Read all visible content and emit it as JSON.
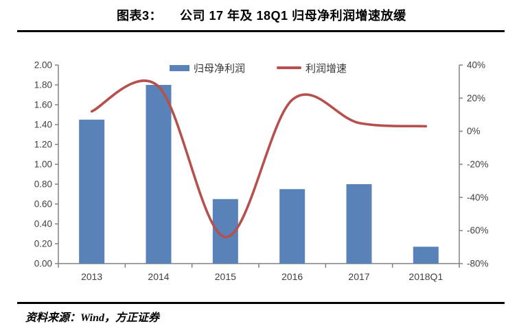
{
  "title": {
    "label": "图表3：",
    "text": "公司 17 年及 18Q1 归母净利润增速放缓"
  },
  "source_note": "资料来源：Wind，方正证券",
  "colors": {
    "bar": "#5882B8",
    "line": "#B5504D",
    "axis": "#808080",
    "tick_text": "#404040"
  },
  "chart_data": {
    "type": "bar",
    "subtype": "bar+line combo",
    "categories": [
      "2013",
      "2014",
      "2015",
      "2016",
      "2017",
      "2018Q1"
    ],
    "series": [
      {
        "name": "归母净利润",
        "type": "bar",
        "axis": "left",
        "color": "#5882B8",
        "values": [
          1.45,
          1.8,
          0.65,
          0.75,
          0.8,
          0.17
        ]
      },
      {
        "name": "利润增速",
        "type": "line",
        "axis": "right",
        "color": "#B5504D",
        "unit": "%",
        "values": [
          12,
          27,
          -64,
          19,
          5,
          3
        ]
      }
    ],
    "left_axis": {
      "min": 0,
      "max": 2,
      "step": 0.2,
      "ticks": [
        "2.00",
        "1.80",
        "1.60",
        "1.40",
        "1.20",
        "1.00",
        "0.80",
        "0.60",
        "0.40",
        "0.20",
        "0.00"
      ]
    },
    "right_axis": {
      "min": -80,
      "max": 40,
      "step": 20,
      "ticks": [
        "40%",
        "20%",
        "0%",
        "-20%",
        "-40%",
        "-60%",
        "-80%"
      ]
    },
    "grid": false,
    "legend_position": "top",
    "line_smoothing": true
  }
}
